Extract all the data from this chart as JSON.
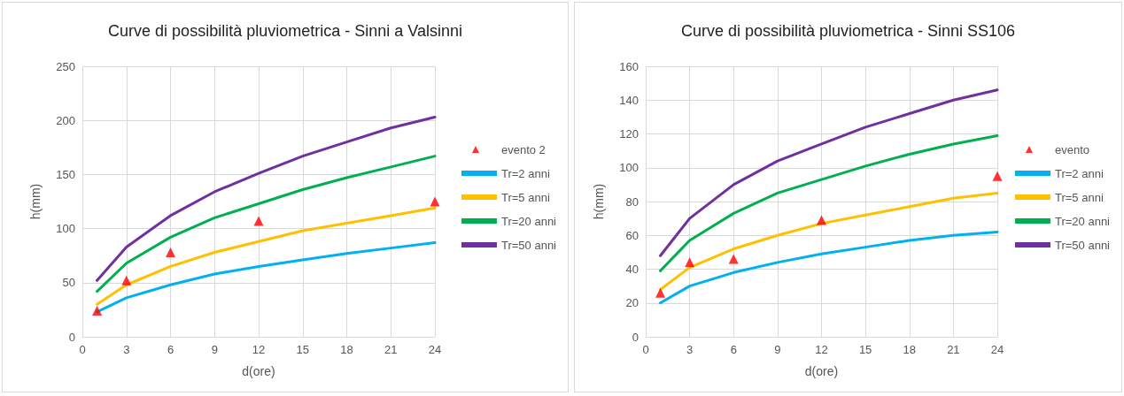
{
  "chart_data": [
    {
      "type": "line",
      "title": "Curve di possibilità pluviometrica - Sinni a Valsinni",
      "xlabel": "d(ore)",
      "ylabel": "h(mm)",
      "x": [
        1,
        3,
        6,
        9,
        12,
        15,
        18,
        21,
        24
      ],
      "xlim": [
        0,
        24
      ],
      "xticks": [
        0,
        3,
        6,
        9,
        12,
        15,
        18,
        21,
        24
      ],
      "ylim": [
        0,
        250
      ],
      "yticks": [
        0,
        50,
        100,
        150,
        200,
        250
      ],
      "grid": true,
      "legend": "right",
      "line_style": "solid",
      "series": [
        {
          "name": "evento 2",
          "type": "scatter",
          "marker": "triangle",
          "color": "#ff0000",
          "x": [
            1,
            3,
            6,
            12,
            24
          ],
          "values": [
            24,
            52,
            78,
            107,
            125
          ]
        },
        {
          "name": "Tr=2 anni",
          "marker": "none",
          "color": "#00b0f0",
          "values": [
            23,
            36,
            48,
            58,
            65,
            71,
            77,
            82,
            87
          ]
        },
        {
          "name": "Tr=5 anni",
          "marker": "none",
          "color": "#ffc000",
          "values": [
            30,
            48,
            65,
            78,
            88,
            98,
            105,
            112,
            119
          ]
        },
        {
          "name": "Tr=20 anni",
          "marker": "none",
          "color": "#00b050",
          "values": [
            42,
            68,
            92,
            110,
            123,
            136,
            147,
            157,
            167
          ]
        },
        {
          "name": "Tr=50 anni",
          "marker": "none",
          "color": "#7030a0",
          "values": [
            52,
            83,
            112,
            134,
            151,
            167,
            180,
            193,
            203
          ]
        }
      ]
    },
    {
      "type": "line",
      "title": "Curve di possibilità pluviometrica - Sinni SS106",
      "xlabel": "d(ore)",
      "ylabel": "h(mm)",
      "x": [
        1,
        3,
        6,
        9,
        12,
        15,
        18,
        21,
        24
      ],
      "xlim": [
        0,
        24
      ],
      "xticks": [
        0,
        3,
        6,
        9,
        12,
        15,
        18,
        21,
        24
      ],
      "ylim": [
        0,
        160
      ],
      "yticks": [
        0,
        20,
        40,
        60,
        80,
        100,
        120,
        140,
        160
      ],
      "grid": true,
      "legend": "right",
      "line_style": "solid",
      "series": [
        {
          "name": "evento",
          "type": "scatter",
          "marker": "triangle",
          "color": "#ff0000",
          "x": [
            1,
            3,
            6,
            12,
            24
          ],
          "values": [
            26,
            44,
            46,
            69,
            95
          ]
        },
        {
          "name": "Tr=2 anni",
          "marker": "none",
          "color": "#00b0f0",
          "values": [
            20,
            30,
            38,
            44,
            49,
            53,
            57,
            60,
            62
          ]
        },
        {
          "name": "Tr=5 anni",
          "marker": "none",
          "color": "#ffc000",
          "values": [
            28,
            41,
            52,
            60,
            67,
            72,
            77,
            82,
            85
          ]
        },
        {
          "name": "Tr=20 anni",
          "marker": "none",
          "color": "#00b050",
          "values": [
            39,
            57,
            73,
            85,
            93,
            101,
            108,
            114,
            119
          ]
        },
        {
          "name": "Tr=50 anni",
          "marker": "none",
          "color": "#7030a0",
          "values": [
            48,
            70,
            90,
            104,
            114,
            124,
            132,
            140,
            146
          ]
        }
      ]
    }
  ]
}
